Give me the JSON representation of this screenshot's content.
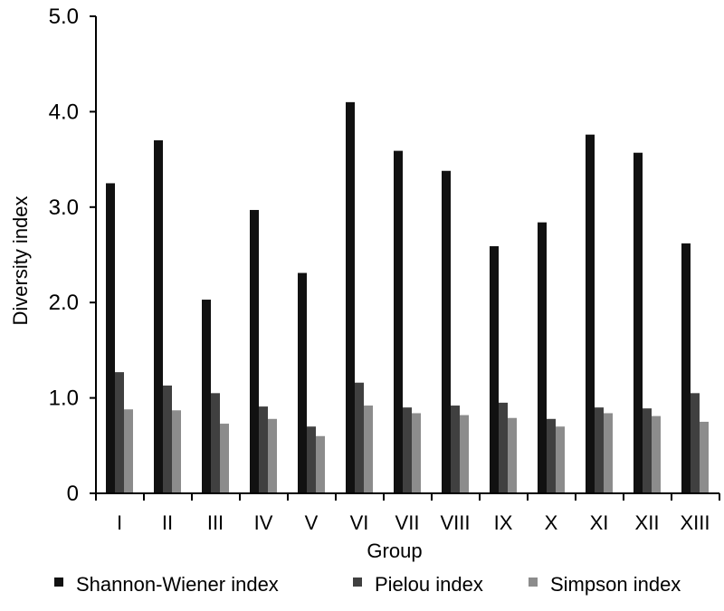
{
  "chart_data": {
    "type": "bar",
    "title": "",
    "xlabel": "Group",
    "ylabel": "Diversity index",
    "ylim": [
      0,
      5
    ],
    "yticks": [
      "0",
      "1.0",
      "2.0",
      "3.0",
      "4.0",
      "5.0"
    ],
    "grid": false,
    "legend_position": "bottom",
    "categories": [
      "I",
      "II",
      "III",
      "IV",
      "V",
      "VI",
      "VII",
      "VIII",
      "IX",
      "X",
      "XI",
      "XII",
      "XIII"
    ],
    "series": [
      {
        "name": "Shannon-Wiener index",
        "color": "#111111",
        "values": [
          3.25,
          3.7,
          2.03,
          2.97,
          2.31,
          4.1,
          3.59,
          3.38,
          2.59,
          2.84,
          3.76,
          3.57,
          2.62
        ]
      },
      {
        "name": "Pielou index",
        "color": "#404040",
        "values": [
          1.27,
          1.13,
          1.05,
          0.91,
          0.7,
          1.16,
          0.9,
          0.92,
          0.95,
          0.78,
          0.9,
          0.89,
          1.05
        ]
      },
      {
        "name": "Simpson index",
        "color": "#8c8c8c",
        "values": [
          0.88,
          0.87,
          0.73,
          0.78,
          0.6,
          0.92,
          0.84,
          0.82,
          0.79,
          0.7,
          0.84,
          0.81,
          0.75
        ]
      }
    ]
  }
}
